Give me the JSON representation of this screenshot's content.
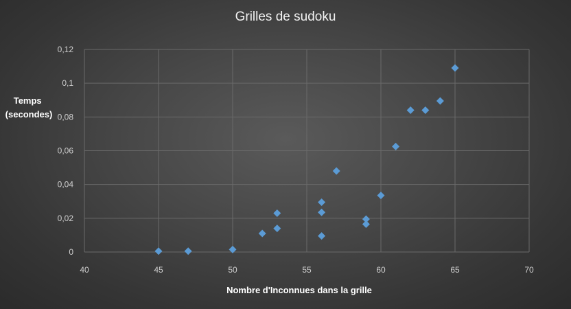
{
  "chart_data": {
    "type": "scatter",
    "title": "Grilles de sudoku",
    "xlabel": "Nombre d'Inconnues dans la grille",
    "ylabel_lines": [
      "Temps",
      "(secondes)"
    ],
    "xlim": [
      40,
      70
    ],
    "ylim": [
      0,
      0.12
    ],
    "x_ticks": [
      "40",
      "45",
      "50",
      "55",
      "60",
      "65",
      "70"
    ],
    "y_ticks": [
      "0",
      "0,02",
      "0,04",
      "0,06",
      "0,08",
      "0,1",
      "0,12"
    ],
    "grid": true,
    "marker": "diamond",
    "colors": {
      "marker": "#5b9bd5"
    },
    "x": [
      45,
      47,
      50,
      52,
      53,
      53,
      56,
      56,
      56,
      57,
      59,
      59,
      60,
      61,
      62,
      63,
      64,
      65
    ],
    "y": [
      0.0005,
      0.0005,
      0.0015,
      0.011,
      0.014,
      0.023,
      0.0095,
      0.0235,
      0.0295,
      0.048,
      0.0165,
      0.0195,
      0.0335,
      0.0625,
      0.084,
      0.084,
      0.0895,
      0.109
    ]
  }
}
